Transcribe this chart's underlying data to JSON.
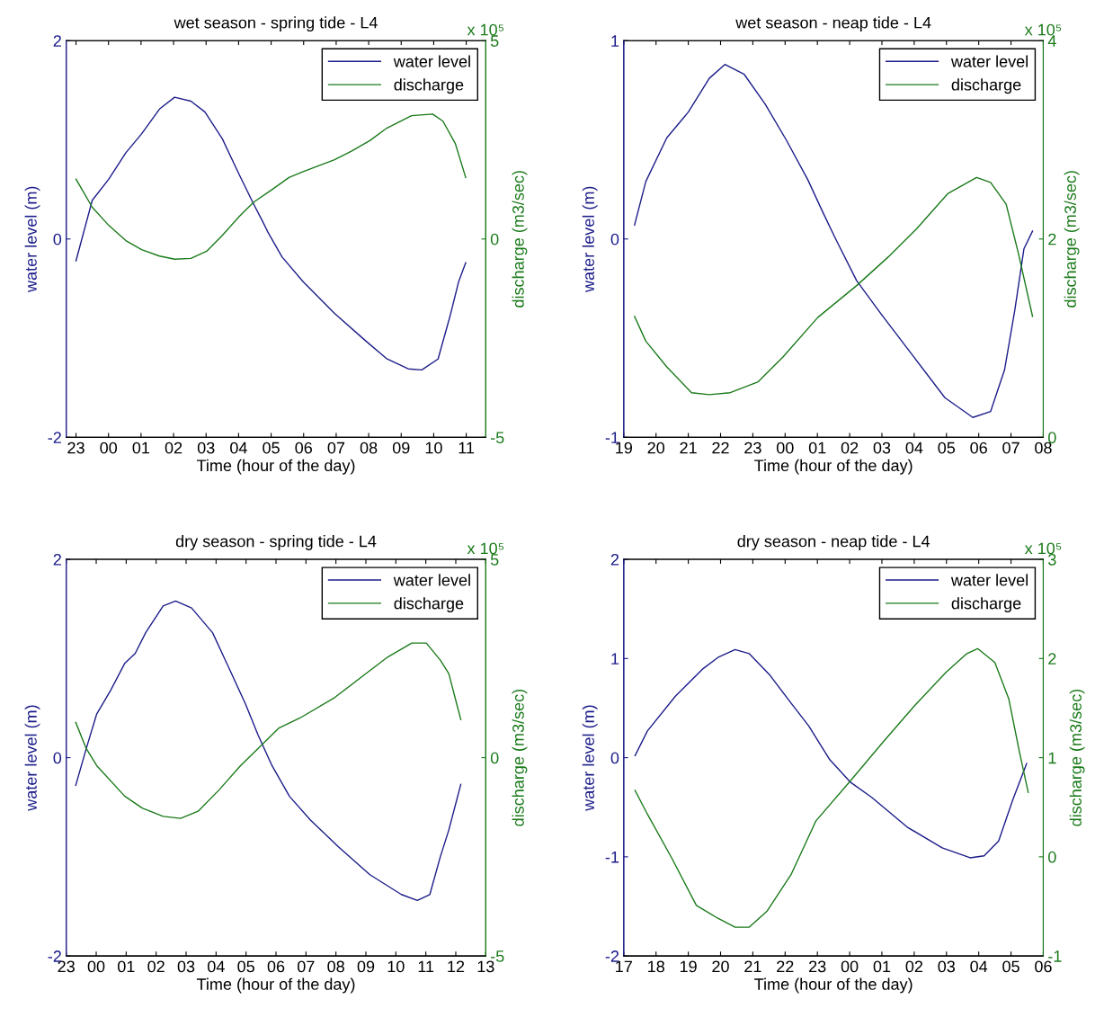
{
  "chart_data": [
    {
      "type": "line",
      "title": "wet season - spring tide - L4",
      "xlabel": "Time (hour of the day)",
      "ylabel": "water level (m)",
      "y2label": "discharge (m3/sec)",
      "annotations": [
        "x 10⁵"
      ],
      "legend": "top right",
      "xlim": [
        "2000-01-01T22:42",
        "2000-01-02T11:36"
      ],
      "xticks": [
        {
          "value": "2000-01-01T23:00",
          "label": "23"
        },
        {
          "value": "2000-01-02T00:00",
          "label": "00"
        },
        {
          "value": "2000-01-02T01:00",
          "label": "01"
        },
        {
          "value": "2000-01-02T02:00",
          "label": "02"
        },
        {
          "value": "2000-01-02T03:00",
          "label": "03"
        },
        {
          "value": "2000-01-02T04:00",
          "label": "04"
        },
        {
          "value": "2000-01-02T05:00",
          "label": "05"
        },
        {
          "value": "2000-01-02T06:00",
          "label": "06"
        },
        {
          "value": "2000-01-02T07:00",
          "label": "07"
        },
        {
          "value": "2000-01-02T08:00",
          "label": "08"
        },
        {
          "value": "2000-01-02T09:00",
          "label": "09"
        },
        {
          "value": "2000-01-02T10:00",
          "label": "10"
        },
        {
          "value": "2000-01-02T11:00",
          "label": "11"
        }
      ],
      "ylim": [
        -2,
        2
      ],
      "yticks": [
        -2,
        0,
        2
      ],
      "y2lim": [
        -5,
        5
      ],
      "y2ticks": [
        -5,
        0,
        5
      ],
      "series": [
        {
          "name": "water level",
          "color": "#1c1c8a",
          "x": [
            "2000-01-01T23:00",
            "2000-01-01T23:30",
            "2000-01-02T00:00",
            "2000-01-02T00:32",
            "2000-01-02T01:01",
            "2000-01-02T01:34",
            "2000-01-02T02:02",
            "2000-01-02T02:32",
            "2000-01-02T02:58",
            "2000-01-02T03:30",
            "2000-01-02T04:02",
            "2000-01-02T04:28",
            "2000-01-02T04:44",
            "2000-01-02T04:54",
            "2000-01-02T05:20",
            "2000-01-02T05:59",
            "2000-01-02T06:57",
            "2000-01-02T07:55",
            "2000-01-02T08:34",
            "2000-01-02T09:13",
            "2000-01-02T09:38",
            "2000-01-02T10:08",
            "2000-01-02T10:30",
            "2000-01-02T10:46",
            "2000-01-02T10:59"
          ],
          "values": [
            -0.22,
            0.39,
            0.6,
            0.87,
            1.06,
            1.31,
            1.43,
            1.39,
            1.28,
            1.01,
            0.64,
            0.35,
            0.18,
            0.07,
            -0.18,
            -0.43,
            -0.75,
            -1.03,
            -1.21,
            -1.31,
            -1.32,
            -1.21,
            -0.78,
            -0.43,
            -0.24
          ]
        },
        {
          "name": "discharge",
          "color": "#1a7a1a",
          "axis": "y2",
          "x": [
            "2000-01-01T23:00",
            "2000-01-01T23:30",
            "2000-01-02T00:00",
            "2000-01-02T00:32",
            "2000-01-02T01:01",
            "2000-01-02T01:34",
            "2000-01-02T02:02",
            "2000-01-02T02:32",
            "2000-01-02T03:01",
            "2000-01-02T03:30",
            "2000-01-02T04:02",
            "2000-01-02T04:28",
            "2000-01-02T05:01",
            "2000-01-02T05:33",
            "2000-01-02T05:59",
            "2000-01-02T06:57",
            "2000-01-02T07:29",
            "2000-01-02T08:02",
            "2000-01-02T08:34",
            "2000-01-02T09:19",
            "2000-01-02T09:58",
            "2000-01-02T10:17",
            "2000-01-02T10:40",
            "2000-01-02T10:59"
          ],
          "values": [
            1.51,
            0.8,
            0.35,
            -0.04,
            -0.27,
            -0.43,
            -0.51,
            -0.49,
            -0.31,
            0.09,
            0.58,
            0.93,
            1.24,
            1.55,
            1.7,
            2.0,
            2.22,
            2.48,
            2.8,
            3.11,
            3.15,
            2.97,
            2.4,
            1.55
          ]
        }
      ]
    },
    {
      "type": "line",
      "title": "wet season - neap tide - L4",
      "xlabel": "Time (hour of the day)",
      "ylabel": "water level (m)",
      "y2label": "discharge (m3/sec)",
      "annotations": [
        "x 10⁵"
      ],
      "legend": "top right",
      "xlim": [
        "2000-01-01T19:00",
        "2000-01-02T08:00"
      ],
      "xticks": [
        {
          "value": "2000-01-01T19:00",
          "label": "19"
        },
        {
          "value": "2000-01-01T20:00",
          "label": "20"
        },
        {
          "value": "2000-01-01T21:00",
          "label": "21"
        },
        {
          "value": "2000-01-01T22:00",
          "label": "22"
        },
        {
          "value": "2000-01-01T23:00",
          "label": "23"
        },
        {
          "value": "2000-01-02T00:00",
          "label": "00"
        },
        {
          "value": "2000-01-02T01:00",
          "label": "01"
        },
        {
          "value": "2000-01-02T02:00",
          "label": "02"
        },
        {
          "value": "2000-01-02T03:00",
          "label": "03"
        },
        {
          "value": "2000-01-02T04:00",
          "label": "04"
        },
        {
          "value": "2000-01-02T05:00",
          "label": "05"
        },
        {
          "value": "2000-01-02T06:00",
          "label": "06"
        },
        {
          "value": "2000-01-02T07:00",
          "label": "07"
        },
        {
          "value": "2000-01-02T08:00",
          "label": "08"
        }
      ],
      "ylim": [
        -1,
        1
      ],
      "yticks": [
        -1,
        0,
        1
      ],
      "y2lim": [
        0,
        4
      ],
      "y2ticks": [
        0,
        2,
        4
      ],
      "series": [
        {
          "name": "water level",
          "color": "#1c1c8a",
          "x": [
            "2000-01-01T19:20",
            "2000-01-01T19:41",
            "2000-01-01T20:20",
            "2000-01-01T21:00",
            "2000-01-01T21:39",
            "2000-01-01T22:08",
            "2000-01-01T22:44",
            "2000-01-01T23:23",
            "2000-01-02T00:02",
            "2000-01-02T00:42",
            "2000-01-02T01:11",
            "2000-01-02T01:34",
            "2000-01-02T02:13",
            "2000-01-02T02:59",
            "2000-01-02T03:58",
            "2000-01-02T04:57",
            "2000-01-02T05:49",
            "2000-01-02T06:22",
            "2000-01-02T06:48",
            "2000-01-02T07:07",
            "2000-01-02T07:24",
            "2000-01-02T07:40"
          ],
          "values": [
            0.07,
            0.29,
            0.51,
            0.64,
            0.81,
            0.88,
            0.83,
            0.68,
            0.5,
            0.3,
            0.13,
            0.0,
            -0.21,
            -0.38,
            -0.59,
            -0.8,
            -0.9,
            -0.87,
            -0.66,
            -0.36,
            -0.05,
            0.04
          ]
        },
        {
          "name": "discharge",
          "color": "#1a7a1a",
          "axis": "y2",
          "x": [
            "2000-01-01T19:20",
            "2000-01-01T19:41",
            "2000-01-01T20:20",
            "2000-01-01T21:06",
            "2000-01-01T21:39",
            "2000-01-01T22:18",
            "2000-01-01T23:10",
            "2000-01-01T23:56",
            "2000-01-02T01:01",
            "2000-01-02T02:13",
            "2000-01-02T03:12",
            "2000-01-02T04:04",
            "2000-01-02T05:03",
            "2000-01-02T05:56",
            "2000-01-02T06:22",
            "2000-01-02T06:51",
            "2000-01-02T07:14",
            "2000-01-02T07:40"
          ],
          "values": [
            1.22,
            0.97,
            0.71,
            0.45,
            0.43,
            0.45,
            0.56,
            0.81,
            1.21,
            1.53,
            1.82,
            2.1,
            2.46,
            2.62,
            2.57,
            2.35,
            1.85,
            1.22
          ]
        }
      ]
    },
    {
      "type": "line",
      "title": "dry season - spring tide - L4",
      "xlabel": "Time (hour of the day)",
      "ylabel": "water level (m)",
      "y2label": "discharge (m3/sec)",
      "annotations": [
        "x 10⁵"
      ],
      "legend": "top right",
      "xlim": [
        "2000-01-01T23:00",
        "2000-01-02T13:00"
      ],
      "xticks": [
        {
          "value": "2000-01-01T23:00",
          "label": "23"
        },
        {
          "value": "2000-01-02T00:00",
          "label": "00"
        },
        {
          "value": "2000-01-02T01:00",
          "label": "01"
        },
        {
          "value": "2000-01-02T02:00",
          "label": "02"
        },
        {
          "value": "2000-01-02T03:00",
          "label": "03"
        },
        {
          "value": "2000-01-02T04:00",
          "label": "04"
        },
        {
          "value": "2000-01-02T05:00",
          "label": "05"
        },
        {
          "value": "2000-01-02T06:00",
          "label": "06"
        },
        {
          "value": "2000-01-02T07:00",
          "label": "07"
        },
        {
          "value": "2000-01-02T08:00",
          "label": "08"
        },
        {
          "value": "2000-01-02T09:00",
          "label": "09"
        },
        {
          "value": "2000-01-02T10:00",
          "label": "10"
        },
        {
          "value": "2000-01-02T11:00",
          "label": "11"
        },
        {
          "value": "2000-01-02T12:00",
          "label": "12"
        },
        {
          "value": "2000-01-02T13:00",
          "label": "13"
        }
      ],
      "ylim": [
        -2,
        2
      ],
      "yticks": [
        -2,
        0,
        2
      ],
      "y2lim": [
        -5,
        5
      ],
      "y2ticks": [
        -5,
        0,
        5
      ],
      "series": [
        {
          "name": "water level",
          "color": "#1c1c8a",
          "x": [
            "2000-01-01T23:19",
            "2000-01-01T23:40",
            "2000-01-02T00:01",
            "2000-01-02T00:29",
            "2000-01-02T00:57",
            "2000-01-02T01:18",
            "2000-01-02T01:39",
            "2000-01-02T02:14",
            "2000-01-02T02:39",
            "2000-01-02T03:11",
            "2000-01-02T03:53",
            "2000-01-02T04:28",
            "2000-01-02T04:59",
            "2000-01-02T05:24",
            "2000-01-02T05:52",
            "2000-01-02T06:27",
            "2000-01-02T07:09",
            "2000-01-02T08:05",
            "2000-01-02T09:08",
            "2000-01-02T10:11",
            "2000-01-02T10:43",
            "2000-01-02T11:08",
            "2000-01-02T11:29",
            "2000-01-02T11:46",
            "2000-01-02T12:10"
          ],
          "values": [
            -0.28,
            0.09,
            0.44,
            0.68,
            0.95,
            1.05,
            1.26,
            1.53,
            1.58,
            1.51,
            1.26,
            0.88,
            0.54,
            0.23,
            -0.08,
            -0.39,
            -0.63,
            -0.9,
            -1.18,
            -1.38,
            -1.44,
            -1.38,
            -1.0,
            -0.73,
            -0.27
          ]
        },
        {
          "name": "discharge",
          "color": "#1a7a1a",
          "axis": "y2",
          "x": [
            "2000-01-01T23:19",
            "2000-01-01T23:40",
            "2000-01-02T00:01",
            "2000-01-02T00:57",
            "2000-01-02T01:32",
            "2000-01-02T02:14",
            "2000-01-02T02:49",
            "2000-01-02T03:24",
            "2000-01-02T04:07",
            "2000-01-02T04:49",
            "2000-01-02T05:24",
            "2000-01-02T06:06",
            "2000-01-02T06:48",
            "2000-01-02T07:58",
            "2000-01-02T08:55",
            "2000-01-02T09:44",
            "2000-01-02T10:32",
            "2000-01-02T11:01",
            "2000-01-02T11:29",
            "2000-01-02T11:46",
            "2000-01-02T12:10"
          ],
          "values": [
            0.89,
            0.23,
            -0.2,
            -0.97,
            -1.27,
            -1.48,
            -1.53,
            -1.35,
            -0.8,
            -0.2,
            0.23,
            0.75,
            1.0,
            1.52,
            2.07,
            2.54,
            2.89,
            2.89,
            2.46,
            2.12,
            0.96
          ]
        }
      ]
    },
    {
      "type": "line",
      "title": "dry season - neap tide - L4",
      "xlabel": "Time (hour of the day)",
      "ylabel": "water level (m)",
      "y2label": "discharge (m3/sec)",
      "annotations": [
        "x 10⁵"
      ],
      "legend": "top right",
      "xlim": [
        "2000-01-01T17:00",
        "2000-01-02T06:00"
      ],
      "xticks": [
        {
          "value": "2000-01-01T17:00",
          "label": "17"
        },
        {
          "value": "2000-01-01T18:00",
          "label": "18"
        },
        {
          "value": "2000-01-01T19:00",
          "label": "19"
        },
        {
          "value": "2000-01-01T20:00",
          "label": "20"
        },
        {
          "value": "2000-01-01T21:00",
          "label": "21"
        },
        {
          "value": "2000-01-01T22:00",
          "label": "22"
        },
        {
          "value": "2000-01-01T23:00",
          "label": "23"
        },
        {
          "value": "2000-01-02T00:00",
          "label": "00"
        },
        {
          "value": "2000-01-02T01:00",
          "label": "01"
        },
        {
          "value": "2000-01-02T02:00",
          "label": "02"
        },
        {
          "value": "2000-01-02T03:00",
          "label": "03"
        },
        {
          "value": "2000-01-02T04:00",
          "label": "04"
        },
        {
          "value": "2000-01-02T05:00",
          "label": "05"
        },
        {
          "value": "2000-01-02T06:00",
          "label": "06"
        }
      ],
      "ylim": [
        -2,
        2
      ],
      "yticks": [
        -2,
        -1,
        0,
        1,
        2
      ],
      "y2lim": [
        -1,
        3
      ],
      "y2ticks": [
        -1,
        0,
        1,
        2,
        3
      ],
      "series": [
        {
          "name": "water level",
          "color": "#1c1c8a",
          "x": [
            "2000-01-01T17:21",
            "2000-01-01T17:44",
            "2000-01-01T18:36",
            "2000-01-01T19:28",
            "2000-01-01T19:55",
            "2000-01-01T20:27",
            "2000-01-01T20:53",
            "2000-01-01T21:32",
            "2000-01-01T22:11",
            "2000-01-01T22:44",
            "2000-01-01T23:23",
            "2000-01-02T00:02",
            "2000-01-02T00:41",
            "2000-01-02T01:47",
            "2000-01-02T02:52",
            "2000-01-02T03:44",
            "2000-01-02T04:10",
            "2000-01-02T04:37",
            "2000-01-02T05:03",
            "2000-01-02T05:29"
          ],
          "values": [
            0.02,
            0.27,
            0.62,
            0.9,
            1.01,
            1.09,
            1.05,
            0.83,
            0.55,
            0.32,
            -0.02,
            -0.25,
            -0.4,
            -0.7,
            -0.91,
            -1.01,
            -0.99,
            -0.84,
            -0.43,
            -0.06
          ]
        },
        {
          "name": "discharge",
          "color": "#1a7a1a",
          "axis": "y2",
          "x": [
            "2000-01-01T17:21",
            "2000-01-01T17:44",
            "2000-01-01T18:29",
            "2000-01-01T19:15",
            "2000-01-01T19:55",
            "2000-01-01T20:27",
            "2000-01-01T20:53",
            "2000-01-01T21:26",
            "2000-01-01T22:11",
            "2000-01-01T22:57",
            "2000-01-02T00:02",
            "2000-01-02T01:01",
            "2000-01-02T02:00",
            "2000-01-02T02:59",
            "2000-01-02T03:38",
            "2000-01-02T03:58",
            "2000-01-02T04:30",
            "2000-01-02T04:56",
            "2000-01-02T05:16",
            "2000-01-02T05:32"
          ],
          "values": [
            0.67,
            0.43,
            -0.01,
            -0.49,
            -0.62,
            -0.71,
            -0.71,
            -0.55,
            -0.18,
            0.36,
            0.77,
            1.15,
            1.52,
            1.86,
            2.05,
            2.1,
            1.96,
            1.59,
            1.05,
            0.65
          ]
        }
      ]
    }
  ]
}
